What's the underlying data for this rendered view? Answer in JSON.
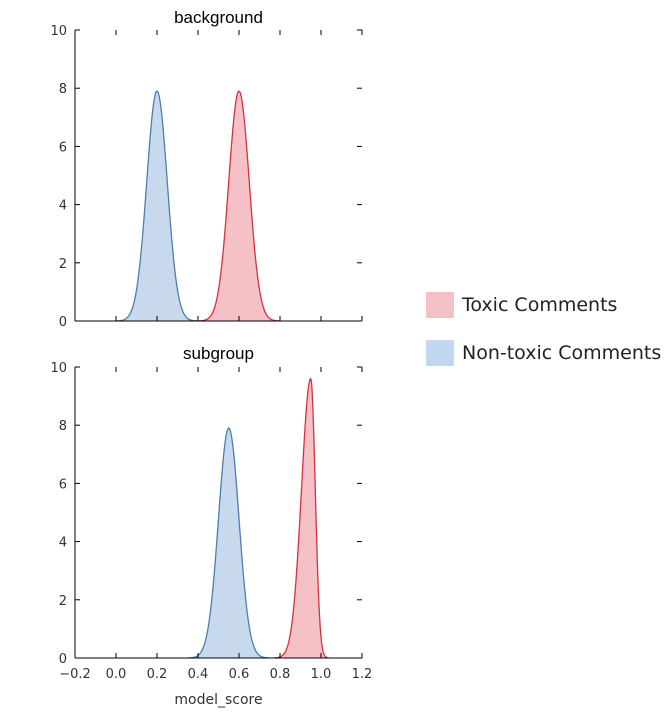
{
  "chart_data": [
    {
      "type": "area",
      "title": "background",
      "xlabel": "",
      "ylabel": "",
      "xlim": [
        -0.2,
        1.2
      ],
      "ylim": [
        0,
        10
      ],
      "x_ticks": [
        -0.2,
        0.0,
        0.2,
        0.4,
        0.6,
        0.8,
        1.0,
        1.2
      ],
      "y_ticks": [
        0,
        2,
        4,
        6,
        8,
        10
      ],
      "show_x_tick_labels": false,
      "grid": false,
      "series": [
        {
          "name": "Non-toxic Comments",
          "color": "#4a7fb0",
          "fill": "#aac4e3",
          "peak_x": 0.2,
          "peak_y": 7.9,
          "sigma_left": 0.05,
          "sigma_right": 0.05
        },
        {
          "name": "Toxic Comments",
          "color": "#d6323c",
          "fill": "#f0a0a8",
          "peak_x": 0.6,
          "peak_y": 7.9,
          "sigma_left": 0.05,
          "sigma_right": 0.05
        }
      ]
    },
    {
      "type": "area",
      "title": "subgroup",
      "xlabel": "model_score",
      "ylabel": "",
      "xlim": [
        -0.2,
        1.2
      ],
      "ylim": [
        0,
        10
      ],
      "x_ticks": [
        -0.2,
        0.0,
        0.2,
        0.4,
        0.6,
        0.8,
        1.0,
        1.2
      ],
      "y_ticks": [
        0,
        2,
        4,
        6,
        8,
        10
      ],
      "show_x_tick_labels": true,
      "grid": false,
      "series": [
        {
          "name": "Non-toxic Comments",
          "color": "#4a7fb0",
          "fill": "#aac4e3",
          "peak_x": 0.55,
          "peak_y": 7.9,
          "sigma_left": 0.05,
          "sigma_right": 0.05
        },
        {
          "name": "Toxic Comments",
          "color": "#d6323c",
          "fill": "#f0a0a8",
          "peak_x": 0.95,
          "peak_y": 9.6,
          "sigma_left": 0.045,
          "sigma_right": 0.022
        }
      ]
    }
  ],
  "legend": {
    "placement": "right",
    "items": [
      {
        "label": "Toxic Comments",
        "color": "#f4c2c6"
      },
      {
        "label": "Non-toxic Comments",
        "color": "#c3d7f2"
      }
    ]
  }
}
